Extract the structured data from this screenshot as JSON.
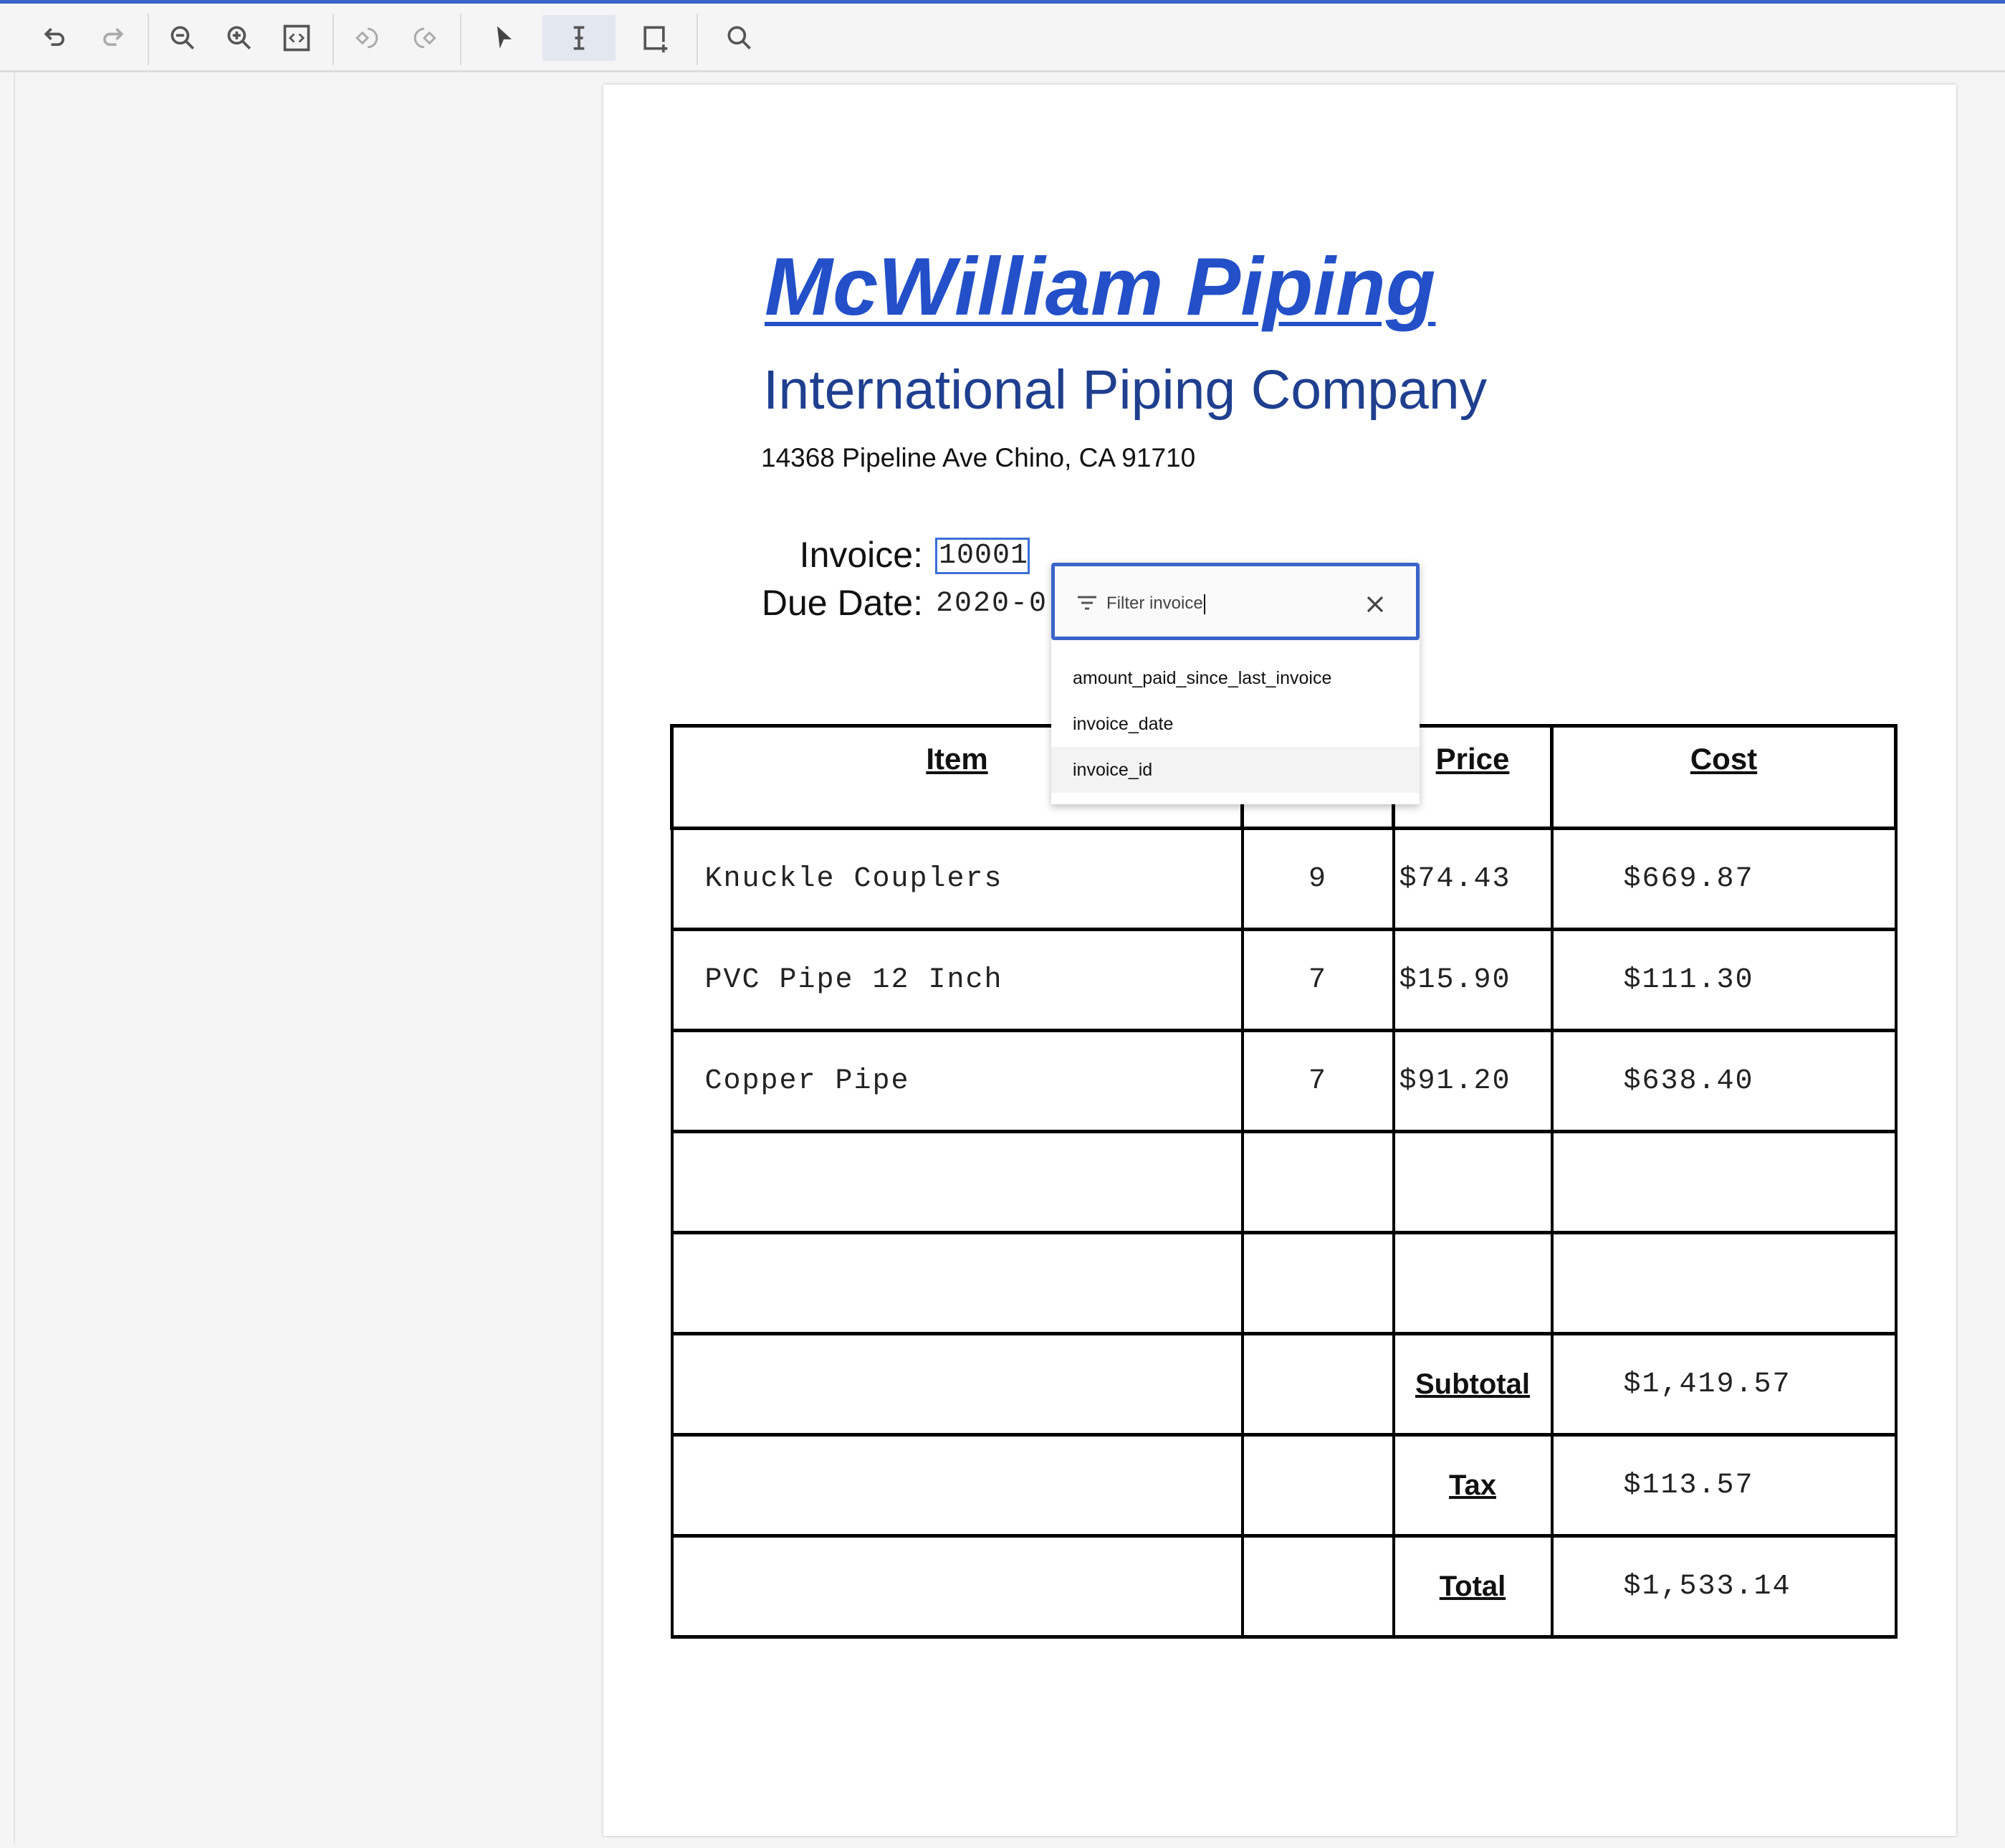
{
  "toolbar": {
    "buttons": [
      {
        "name": "undo-icon",
        "enabled": true
      },
      {
        "name": "redo-icon",
        "enabled": false
      },
      {
        "name": "zoom-out-icon",
        "enabled": true
      },
      {
        "name": "zoom-in-icon",
        "enabled": true
      },
      {
        "name": "fit-page-icon",
        "enabled": true
      },
      {
        "name": "rotate-left-icon",
        "enabled": false
      },
      {
        "name": "rotate-right-icon",
        "enabled": false
      },
      {
        "name": "pointer-icon",
        "enabled": true
      },
      {
        "name": "text-cursor-icon",
        "enabled": true,
        "active": true
      },
      {
        "name": "add-region-icon",
        "enabled": true
      },
      {
        "name": "search-icon",
        "enabled": true
      }
    ]
  },
  "document": {
    "title": "McWilliam Piping",
    "subtitle": "International Piping Company",
    "address": "14368 Pipeline Ave Chino, CA 91710",
    "invoice_label": "Invoice:",
    "invoice_value": "10001",
    "due_label": "Due Date:",
    "due_value": "2020-0",
    "colors": {
      "title": "#2350c8",
      "subtitle": "#1f3f8f",
      "selection": "#3a6fd8"
    }
  },
  "filter": {
    "value": "Filter invoice",
    "options": [
      "amount_paid_since_last_invoice",
      "invoice_date",
      "invoice_id"
    ],
    "highlighted": "invoice_id"
  },
  "table": {
    "headers": [
      "Item",
      "Price",
      "Cost"
    ],
    "rows": [
      {
        "item": "Knuckle Couplers",
        "qty": "9",
        "price": "$74.43",
        "cost": "$669.87"
      },
      {
        "item": "PVC Pipe 12 Inch",
        "qty": "7",
        "price": "$15.90",
        "cost": "$111.30"
      },
      {
        "item": "Copper Pipe",
        "qty": "7",
        "price": "$91.20",
        "cost": "$638.40"
      }
    ],
    "summary": [
      {
        "label": "Subtotal",
        "value": "$1,419.57"
      },
      {
        "label": "Tax",
        "value": "$113.57"
      },
      {
        "label": "Total",
        "value": "$1,533.14"
      }
    ]
  }
}
